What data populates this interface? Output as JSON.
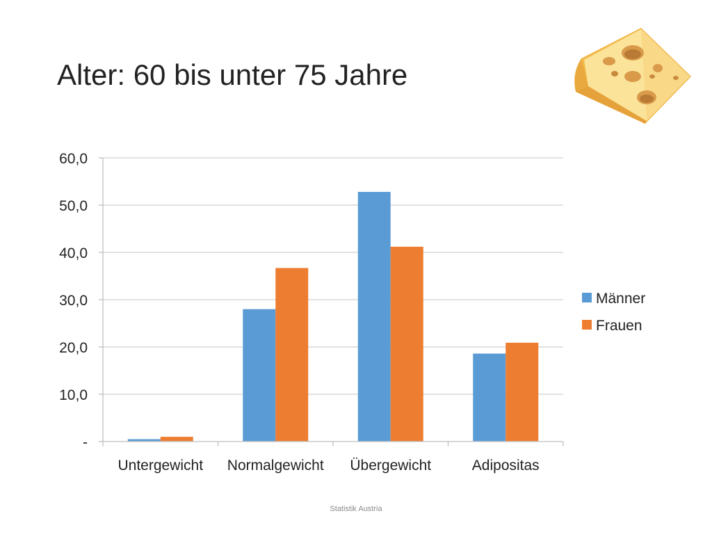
{
  "slide": {
    "title": "Alter: 60 bis unter 75 Jahre",
    "footer": "Statistik Austria",
    "image": "cheese-wedge-icon"
  },
  "colors": {
    "maenner": "#5b9bd5",
    "frauen": "#ed7d31",
    "grid": "#d0d0d0",
    "axis": "#bfbfbf"
  },
  "chart_data": {
    "type": "bar",
    "categories": [
      "Untergewicht",
      "Normalgewicht",
      "Übergewicht",
      "Adipositas"
    ],
    "series": [
      {
        "name": "Männer",
        "values": [
          0.5,
          28.0,
          52.8,
          18.6
        ]
      },
      {
        "name": "Frauen",
        "values": [
          1.0,
          36.7,
          41.2,
          20.9
        ]
      }
    ],
    "ylim": [
      0,
      60
    ],
    "yticks": [
      0,
      10,
      20,
      30,
      40,
      50,
      60
    ],
    "ytick_labels": [
      "-",
      "10,0",
      "20,0",
      "30,0",
      "40,0",
      "50,0",
      "60,0"
    ],
    "xlabel": "",
    "ylabel": "",
    "grid": true,
    "legend_position": "right"
  }
}
